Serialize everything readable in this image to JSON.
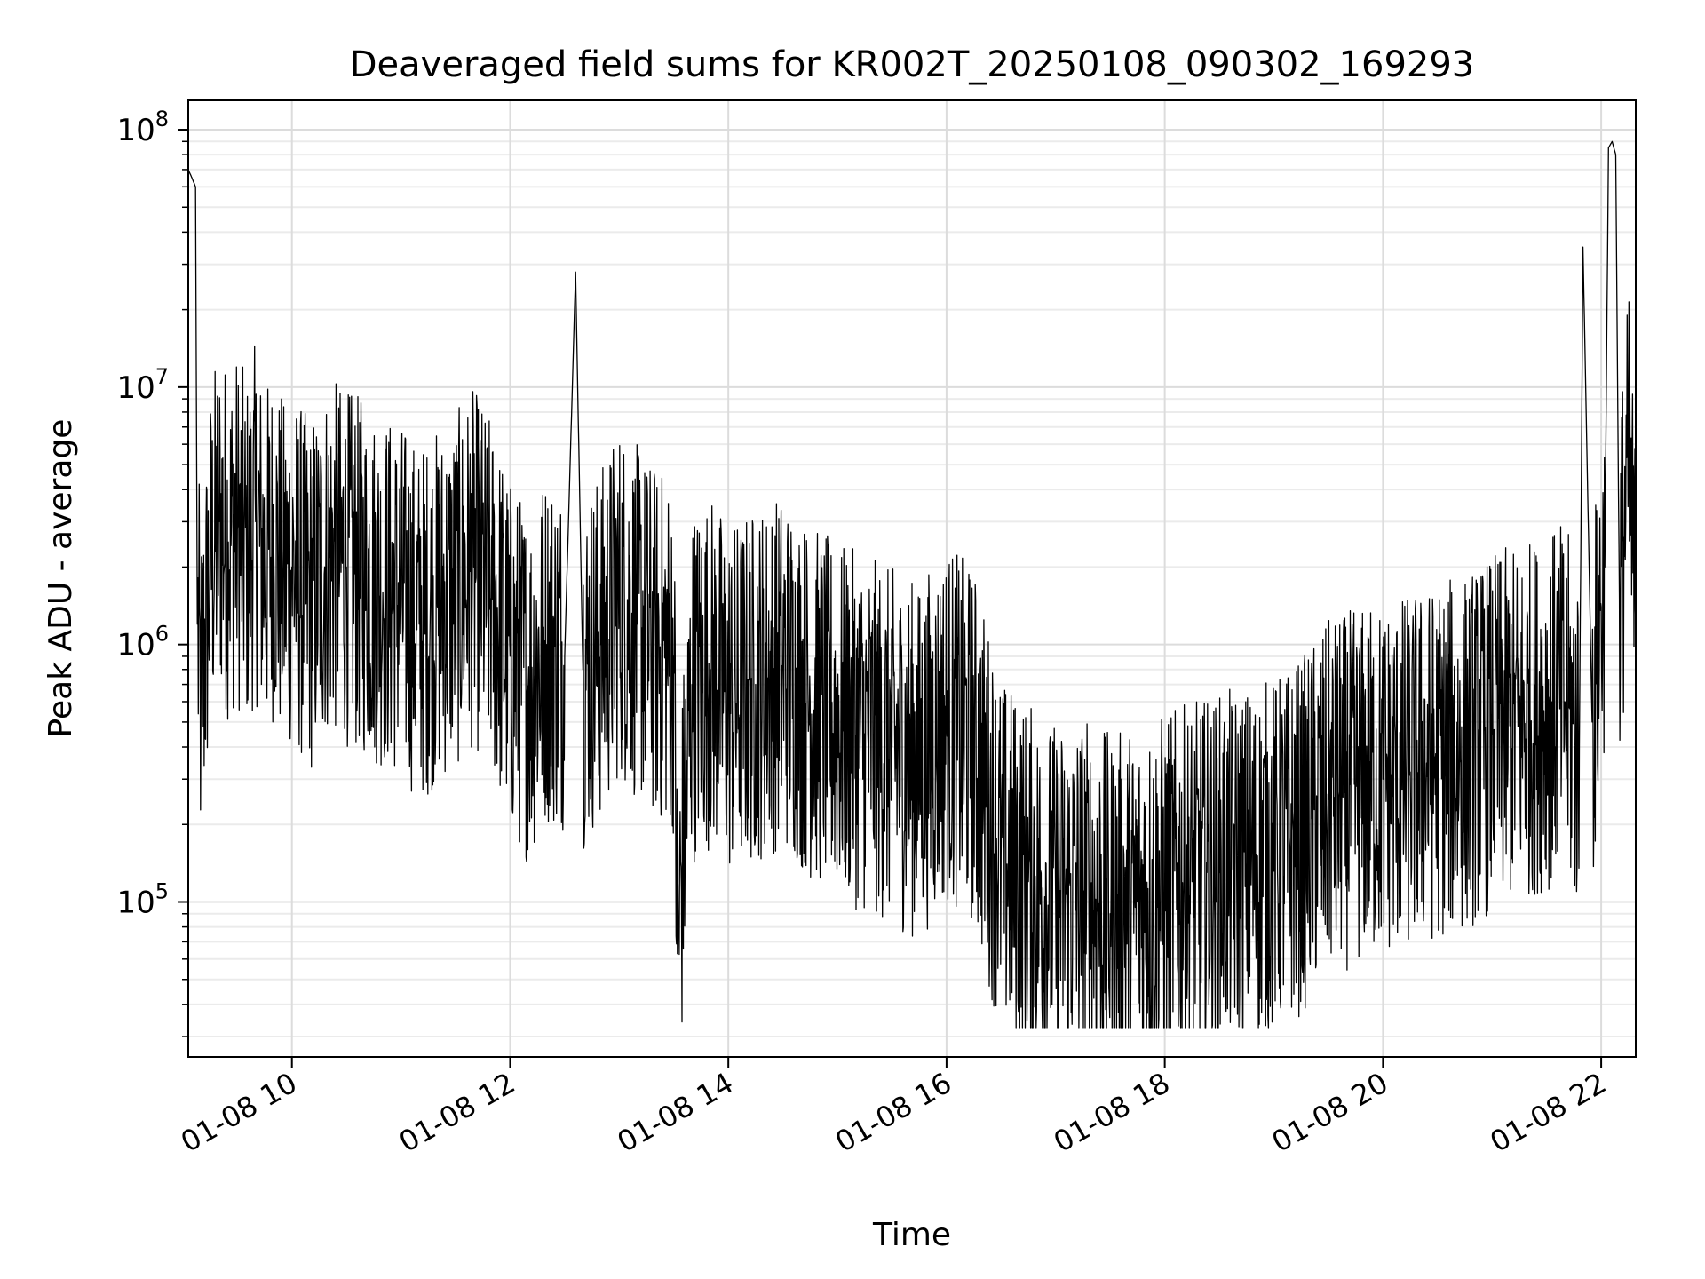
{
  "chart_data": {
    "type": "line",
    "title": "Deaveraged field sums for KR002T_20250108_090302_169293",
    "xlabel": "Time",
    "ylabel": "Peak ADU - average",
    "yscale": "log",
    "ylim": [
      25000,
      130000000
    ],
    "xlim": [
      "01-08 09:03",
      "01-08 22:19"
    ],
    "grid": true,
    "line_color": "#000000",
    "x_ticks": [
      {
        "value": "01-08 10:00",
        "label": "01-08 10"
      },
      {
        "value": "01-08 12:00",
        "label": "01-08 12"
      },
      {
        "value": "01-08 14:00",
        "label": "01-08 14"
      },
      {
        "value": "01-08 16:00",
        "label": "01-08 16"
      },
      {
        "value": "01-08 18:00",
        "label": "01-08 18"
      },
      {
        "value": "01-08 20:00",
        "label": "01-08 20"
      },
      {
        "value": "01-08 22:00",
        "label": "01-08 22"
      }
    ],
    "y_ticks": [
      {
        "value": 100000,
        "base": "10",
        "exp": "5"
      },
      {
        "value": 1000000,
        "base": "10",
        "exp": "6"
      },
      {
        "value": 10000000,
        "base": "10",
        "exp": "7"
      },
      {
        "value": 100000000,
        "base": "10",
        "exp": "8"
      }
    ],
    "series": [
      {
        "x": [
          "01-08 09:03",
          "01-08 09:05",
          "01-08 09:07",
          "01-08 09:08",
          "01-08 09:10",
          "01-08 09:15",
          "01-08 09:20",
          "01-08 09:25",
          "01-08 09:30",
          "01-08 09:35",
          "01-08 09:40",
          "01-08 09:45",
          "01-08 09:50",
          "01-08 09:55",
          "01-08 10:00",
          "01-08 10:10",
          "01-08 10:20",
          "01-08 10:30",
          "01-08 10:40",
          "01-08 10:50",
          "01-08 11:00",
          "01-08 11:10",
          "01-08 11:20",
          "01-08 11:30",
          "01-08 11:40",
          "01-08 11:50",
          "01-08 12:00",
          "01-08 12:10",
          "01-08 12:20",
          "01-08 12:30",
          "01-08 12:36",
          "01-08 12:40",
          "01-08 12:50",
          "01-08 13:00",
          "01-08 13:10",
          "01-08 13:20",
          "01-08 13:30",
          "01-08 13:32",
          "01-08 13:40",
          "01-08 13:50",
          "01-08 14:00",
          "01-08 14:15",
          "01-08 14:30",
          "01-08 14:45",
          "01-08 15:00",
          "01-08 15:15",
          "01-08 15:30",
          "01-08 15:45",
          "01-08 16:00",
          "01-08 16:15",
          "01-08 16:30",
          "01-08 16:45",
          "01-08 17:00",
          "01-08 17:15",
          "01-08 17:30",
          "01-08 17:45",
          "01-08 18:00",
          "01-08 18:15",
          "01-08 18:30",
          "01-08 18:45",
          "01-08 19:00",
          "01-08 19:15",
          "01-08 19:30",
          "01-08 19:45",
          "01-08 20:00",
          "01-08 20:15",
          "01-08 20:30",
          "01-08 20:45",
          "01-08 21:00",
          "01-08 21:15",
          "01-08 21:30",
          "01-08 21:40",
          "01-08 21:48",
          "01-08 21:50",
          "01-08 21:55",
          "01-08 22:00",
          "01-08 22:02",
          "01-08 22:04",
          "01-08 22:06",
          "01-08 22:08",
          "01-08 22:10",
          "01-08 22:15",
          "01-08 22:19"
        ],
        "y": [
          70000000,
          65000000,
          60000000,
          1200000,
          600000,
          2000000,
          3000000,
          2500000,
          2800000,
          2200000,
          3000000,
          2000000,
          2500000,
          1800000,
          2000000,
          1500000,
          2200000,
          2000000,
          1800000,
          1600000,
          1500000,
          1200000,
          1400000,
          1600000,
          2000000,
          1500000,
          900000,
          700000,
          1000000,
          900000,
          28000000,
          800000,
          1000000,
          1500000,
          1200000,
          1000000,
          900000,
          63000,
          700000,
          800000,
          600000,
          700000,
          800000,
          600000,
          500000,
          450000,
          400000,
          350000,
          500000,
          400000,
          150000,
          120000,
          100000,
          110000,
          90000,
          100000,
          110000,
          120000,
          130000,
          140000,
          150000,
          180000,
          250000,
          280000,
          300000,
          320000,
          350000,
          380000,
          450000,
          500000,
          550000,
          600000,
          400000,
          35000000,
          500000,
          1400000,
          2000000,
          85000000,
          90000000,
          80000000,
          1500000,
          5000000,
          1200000
        ]
      }
    ]
  }
}
